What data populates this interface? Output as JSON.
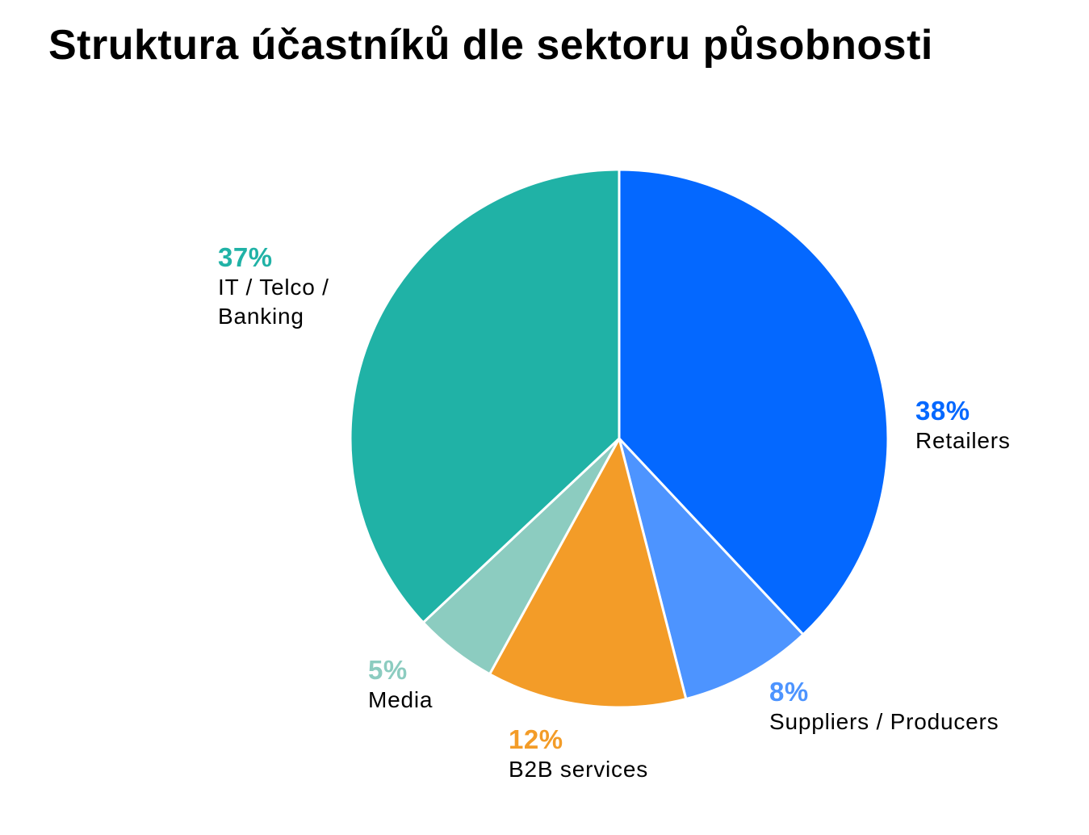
{
  "title": "Struktura účastníků dle sektoru působnosti",
  "chart_data": {
    "type": "pie",
    "title": "Struktura účastníků dle sektoru působnosti",
    "slices": [
      {
        "label": "Retailers",
        "value": 38,
        "value_label": "38%",
        "color": "#0468FF"
      },
      {
        "label": "Suppliers / Producers",
        "value": 8,
        "value_label": "8%",
        "color": "#4D94FF"
      },
      {
        "label": "B2B services",
        "value": 12,
        "value_label": "12%",
        "color": "#F39C28"
      },
      {
        "label": "Media",
        "value": 5,
        "value_label": "5%",
        "color": "#8CCCC0"
      },
      {
        "label": "IT / Telco / Banking",
        "value": 37,
        "value_label": "37%",
        "color": "#20B2A6"
      }
    ],
    "start_angle": "12 o'clock",
    "direction": "clockwise",
    "legend": "none",
    "slice_border_color": "#ffffff"
  }
}
